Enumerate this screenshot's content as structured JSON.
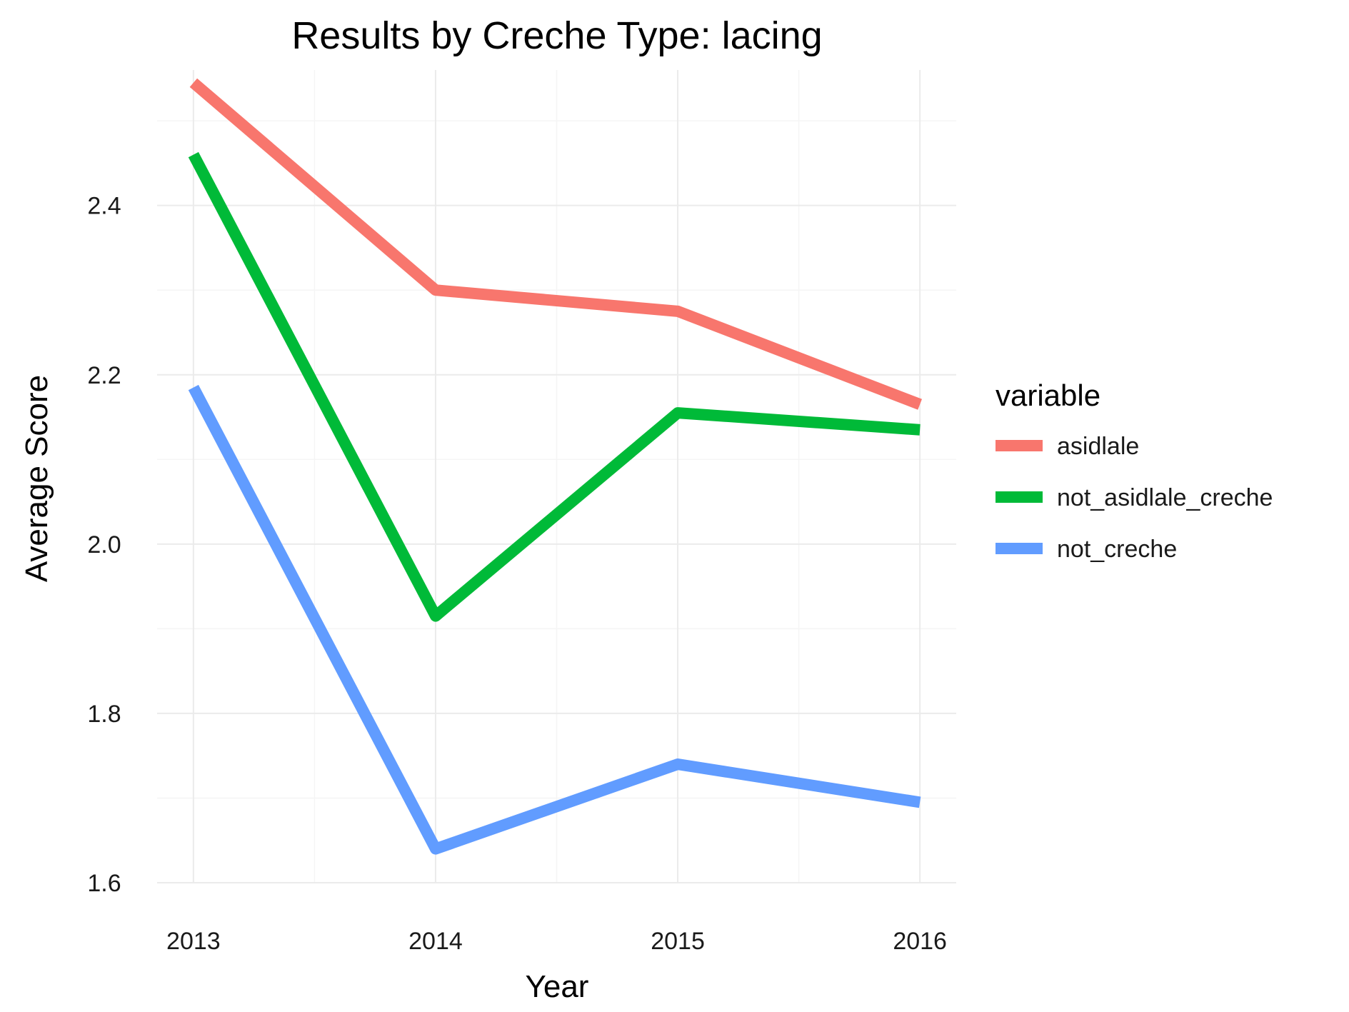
{
  "chart_data": {
    "type": "line",
    "title": "Results by Creche Type: lacing",
    "xlabel": "Year",
    "ylabel": "Average Score",
    "x": [
      2013,
      2014,
      2015,
      2016
    ],
    "x_tick_labels": [
      "2013",
      "2014",
      "2015",
      "2016"
    ],
    "y_ticks": [
      1.6,
      1.8,
      2.0,
      2.2,
      2.4
    ],
    "y_tick_labels": [
      "1.6",
      "1.8",
      "2.0",
      "2.2",
      "2.4"
    ],
    "xlim": [
      2012.85,
      2016.15
    ],
    "ylim": [
      1.6,
      2.56
    ],
    "grid": true,
    "legend": {
      "title": "variable",
      "position": "right"
    },
    "series": [
      {
        "name": "asidlale",
        "color": "#F8766D",
        "values": [
          2.545,
          2.3,
          2.275,
          2.165
        ]
      },
      {
        "name": "not_asidlale_creche",
        "color": "#00BA38",
        "values": [
          2.46,
          1.915,
          2.155,
          2.135
        ]
      },
      {
        "name": "not_creche",
        "color": "#619CFF",
        "values": [
          2.185,
          1.64,
          1.74,
          1.695
        ]
      }
    ]
  }
}
